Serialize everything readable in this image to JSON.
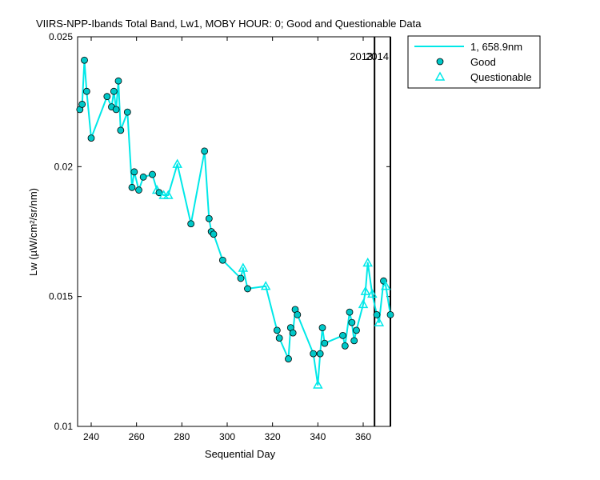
{
  "chart_data": {
    "type": "line",
    "title": "VIIRS-NPP-Ibands Total Band,  Lw1, MOBY HOUR: 0;  Good and Questionable Data",
    "xlabel": "Sequential Day",
    "ylabel": "Lw (µW/cm²/sr/nm)",
    "xlim": [
      234,
      372
    ],
    "ylim": [
      0.01,
      0.025
    ],
    "xticks": [
      240,
      260,
      280,
      300,
      320,
      340,
      360
    ],
    "yticks": [
      0.01,
      0.015,
      0.02,
      0.025
    ],
    "ytick_labels": [
      "0.01",
      "0.015",
      "0.02",
      "0.025"
    ],
    "grid": false,
    "legend_position": "top-right-outside",
    "legend": {
      "line_label": "1, 658.9nm",
      "good_label": "Good",
      "questionable_label": "Questionable"
    },
    "year_markers": [
      {
        "label": "2013",
        "x": 365
      },
      {
        "label": "2014",
        "x": 372
      }
    ],
    "series": [
      {
        "name": "1, 658.9nm",
        "color": "#00e8e8",
        "points": [
          {
            "x": 235,
            "y": 0.0222,
            "q": "good"
          },
          {
            "x": 236,
            "y": 0.0224,
            "q": "good"
          },
          {
            "x": 237,
            "y": 0.0241,
            "q": "good"
          },
          {
            "x": 238,
            "y": 0.0229,
            "q": "good"
          },
          {
            "x": 240,
            "y": 0.0211,
            "q": "good"
          },
          {
            "x": 247,
            "y": 0.0227,
            "q": "good"
          },
          {
            "x": 249,
            "y": 0.0223,
            "q": "good"
          },
          {
            "x": 250,
            "y": 0.0229,
            "q": "good"
          },
          {
            "x": 251,
            "y": 0.0222,
            "q": "good"
          },
          {
            "x": 252,
            "y": 0.0233,
            "q": "good"
          },
          {
            "x": 253,
            "y": 0.0214,
            "q": "good"
          },
          {
            "x": 256,
            "y": 0.0221,
            "q": "good"
          },
          {
            "x": 258,
            "y": 0.0192,
            "q": "good"
          },
          {
            "x": 259,
            "y": 0.0198,
            "q": "good"
          },
          {
            "x": 261,
            "y": 0.0191,
            "q": "good"
          },
          {
            "x": 263,
            "y": 0.0196,
            "q": "good"
          },
          {
            "x": 267,
            "y": 0.0197,
            "q": "good"
          },
          {
            "x": 269,
            "y": 0.0191,
            "q": "questionable"
          },
          {
            "x": 270,
            "y": 0.019,
            "q": "good"
          },
          {
            "x": 272,
            "y": 0.0189,
            "q": "questionable"
          },
          {
            "x": 274,
            "y": 0.0189,
            "q": "questionable"
          },
          {
            "x": 278,
            "y": 0.0201,
            "q": "questionable"
          },
          {
            "x": 284,
            "y": 0.0178,
            "q": "good"
          },
          {
            "x": 290,
            "y": 0.0206,
            "q": "good"
          },
          {
            "x": 292,
            "y": 0.018,
            "q": "good"
          },
          {
            "x": 293,
            "y": 0.0175,
            "q": "good"
          },
          {
            "x": 294,
            "y": 0.0174,
            "q": "good"
          },
          {
            "x": 298,
            "y": 0.0164,
            "q": "good"
          },
          {
            "x": 306,
            "y": 0.0157,
            "q": "good"
          },
          {
            "x": 307,
            "y": 0.0161,
            "q": "questionable"
          },
          {
            "x": 309,
            "y": 0.0153,
            "q": "good"
          },
          {
            "x": 317,
            "y": 0.0154,
            "q": "questionable"
          },
          {
            "x": 322,
            "y": 0.0137,
            "q": "good"
          },
          {
            "x": 323,
            "y": 0.0134,
            "q": "good"
          },
          {
            "x": 327,
            "y": 0.0126,
            "q": "good"
          },
          {
            "x": 328,
            "y": 0.0138,
            "q": "good"
          },
          {
            "x": 329,
            "y": 0.0136,
            "q": "good"
          },
          {
            "x": 330,
            "y": 0.0145,
            "q": "good"
          },
          {
            "x": 331,
            "y": 0.0143,
            "q": "good"
          },
          {
            "x": 338,
            "y": 0.0128,
            "q": "good"
          },
          {
            "x": 340,
            "y": 0.0116,
            "q": "questionable"
          },
          {
            "x": 341,
            "y": 0.0128,
            "q": "good"
          },
          {
            "x": 342,
            "y": 0.0138,
            "q": "good"
          },
          {
            "x": 343,
            "y": 0.0132,
            "q": "good"
          },
          {
            "x": 351,
            "y": 0.0135,
            "q": "good"
          },
          {
            "x": 352,
            "y": 0.0131,
            "q": "good"
          },
          {
            "x": 354,
            "y": 0.0144,
            "q": "good"
          },
          {
            "x": 355,
            "y": 0.014,
            "q": "good"
          },
          {
            "x": 356,
            "y": 0.0133,
            "q": "good"
          },
          {
            "x": 357,
            "y": 0.0137,
            "q": "good"
          },
          {
            "x": 360,
            "y": 0.0147,
            "q": "questionable"
          },
          {
            "x": 361,
            "y": 0.0152,
            "q": "questionable"
          },
          {
            "x": 362,
            "y": 0.0163,
            "q": "questionable"
          },
          {
            "x": 364,
            "y": 0.0151,
            "q": "questionable"
          },
          {
            "x": 366,
            "y": 0.0143,
            "q": "good"
          },
          {
            "x": 367,
            "y": 0.014,
            "q": "questionable"
          },
          {
            "x": 369,
            "y": 0.0156,
            "q": "good"
          },
          {
            "x": 370,
            "y": 0.0154,
            "q": "questionable"
          },
          {
            "x": 372,
            "y": 0.0143,
            "q": "good"
          }
        ]
      }
    ]
  }
}
